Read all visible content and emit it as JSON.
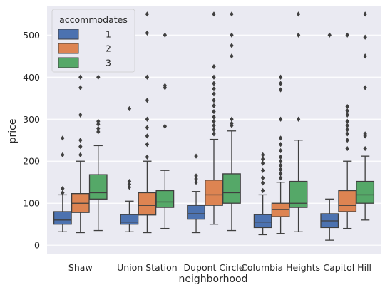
{
  "chart_data": {
    "type": "boxplot",
    "xlabel": "neighborhood",
    "ylabel": "price",
    "ylim": [
      -20,
      570
    ],
    "yticks": [
      0,
      100,
      200,
      300,
      400,
      500
    ],
    "grid": true,
    "legend": {
      "title": "accommodates",
      "position": "top-left"
    },
    "categories": [
      "Shaw",
      "Union Station",
      "Dupont Circle",
      "Columbia Heights",
      "Capitol Hill"
    ],
    "series": [
      {
        "name": "1",
        "color": "#4c72b0",
        "boxes": [
          {
            "whislo": 32,
            "q1": 50,
            "med": 60,
            "q3": 80,
            "whishi": 120,
            "fliers": [
              125,
              135,
              215,
              255
            ]
          },
          {
            "whislo": 32,
            "q1": 50,
            "med": 55,
            "q3": 73,
            "whishi": 105,
            "fliers": [
              138,
              145,
              152,
              325
            ]
          },
          {
            "whislo": 30,
            "q1": 62,
            "med": 75,
            "q3": 95,
            "whishi": 128,
            "fliers": [
              150,
              158,
              165,
              212
            ]
          },
          {
            "whislo": 25,
            "q1": 42,
            "med": 55,
            "q3": 73,
            "whishi": 120,
            "fliers": [
              130,
              148,
              160,
              178,
              195,
              205,
              215
            ]
          },
          {
            "whislo": 12,
            "q1": 42,
            "med": 58,
            "q3": 75,
            "whishi": 110,
            "fliers": [
              500
            ]
          }
        ]
      },
      {
        "name": "2",
        "color": "#dd8452",
        "boxes": [
          {
            "whislo": 30,
            "q1": 78,
            "med": 100,
            "q3": 123,
            "whishi": 200,
            "fliers": [
              215,
              235,
              250,
              310,
              375,
              400
            ]
          },
          {
            "whislo": 30,
            "q1": 72,
            "med": 95,
            "q3": 125,
            "whishi": 200,
            "fliers": [
              210,
              240,
              260,
              280,
              300,
              345,
              400,
              505,
              550
            ]
          },
          {
            "whislo": 50,
            "q1": 95,
            "med": 120,
            "q3": 155,
            "whishi": 252,
            "fliers": [
              265,
              275,
              285,
              295,
              305,
              318,
              332,
              345,
              360,
              372,
              385,
              400,
              425,
              550
            ]
          },
          {
            "whislo": 28,
            "q1": 68,
            "med": 85,
            "q3": 100,
            "whishi": 150,
            "fliers": [
              160,
              170,
              180,
              190,
              200,
              210,
              225,
              240,
              255,
              300,
              370,
              385,
              400
            ]
          },
          {
            "whislo": 40,
            "q1": 80,
            "med": 95,
            "q3": 130,
            "whishi": 200,
            "fliers": [
              230,
              250,
              265,
              275,
              285,
              295,
              310,
              320,
              330,
              500
            ]
          }
        ]
      },
      {
        "name": "3",
        "color": "#55a868",
        "boxes": [
          {
            "whislo": 35,
            "q1": 110,
            "med": 125,
            "q3": 168,
            "whishi": 237,
            "fliers": [
              270,
              278,
              288,
              295,
              400
            ]
          },
          {
            "whislo": 40,
            "q1": 90,
            "med": 103,
            "q3": 130,
            "whishi": 178,
            "fliers": [
              283,
              375,
              380,
              500
            ]
          },
          {
            "whislo": 35,
            "q1": 100,
            "med": 125,
            "q3": 170,
            "whishi": 272,
            "fliers": [
              285,
              290,
              300,
              450,
              475,
              500,
              550
            ]
          },
          {
            "whislo": 32,
            "q1": 90,
            "med": 100,
            "q3": 152,
            "whishi": 250,
            "fliers": [
              300,
              500,
              550
            ]
          },
          {
            "whislo": 60,
            "q1": 100,
            "med": 120,
            "q3": 152,
            "whishi": 212,
            "fliers": [
              230,
              260,
              265,
              375,
              450,
              495,
              550
            ]
          }
        ]
      }
    ]
  }
}
